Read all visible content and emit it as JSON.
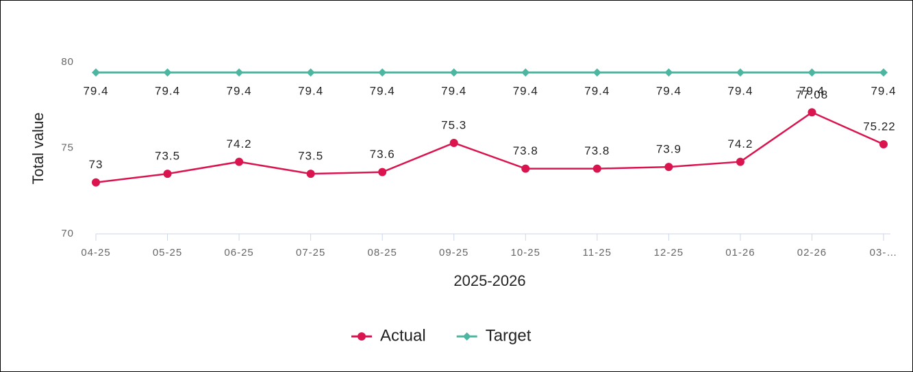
{
  "chart_data": {
    "type": "line",
    "x_label": "2025-2026",
    "y_label": "Total value",
    "categories": [
      "04-25",
      "05-25",
      "06-25",
      "07-25",
      "08-25",
      "09-25",
      "10-25",
      "11-25",
      "12-25",
      "01-26",
      "02-26",
      "03-…"
    ],
    "series": [
      {
        "name": "Actual",
        "color": "#d9144f",
        "values": [
          73,
          73.5,
          74.2,
          73.5,
          73.6,
          75.3,
          73.8,
          73.8,
          73.9,
          74.2,
          77.08,
          75.22
        ]
      },
      {
        "name": "Target",
        "color": "#4db6a0",
        "values": [
          79.4,
          79.4,
          79.4,
          79.4,
          79.4,
          79.4,
          79.4,
          79.4,
          79.4,
          79.4,
          79.4,
          79.4
        ]
      }
    ],
    "ylim": [
      70,
      80
    ],
    "yticks": [
      70,
      75,
      80
    ],
    "grid": false,
    "legend": "bottom"
  }
}
